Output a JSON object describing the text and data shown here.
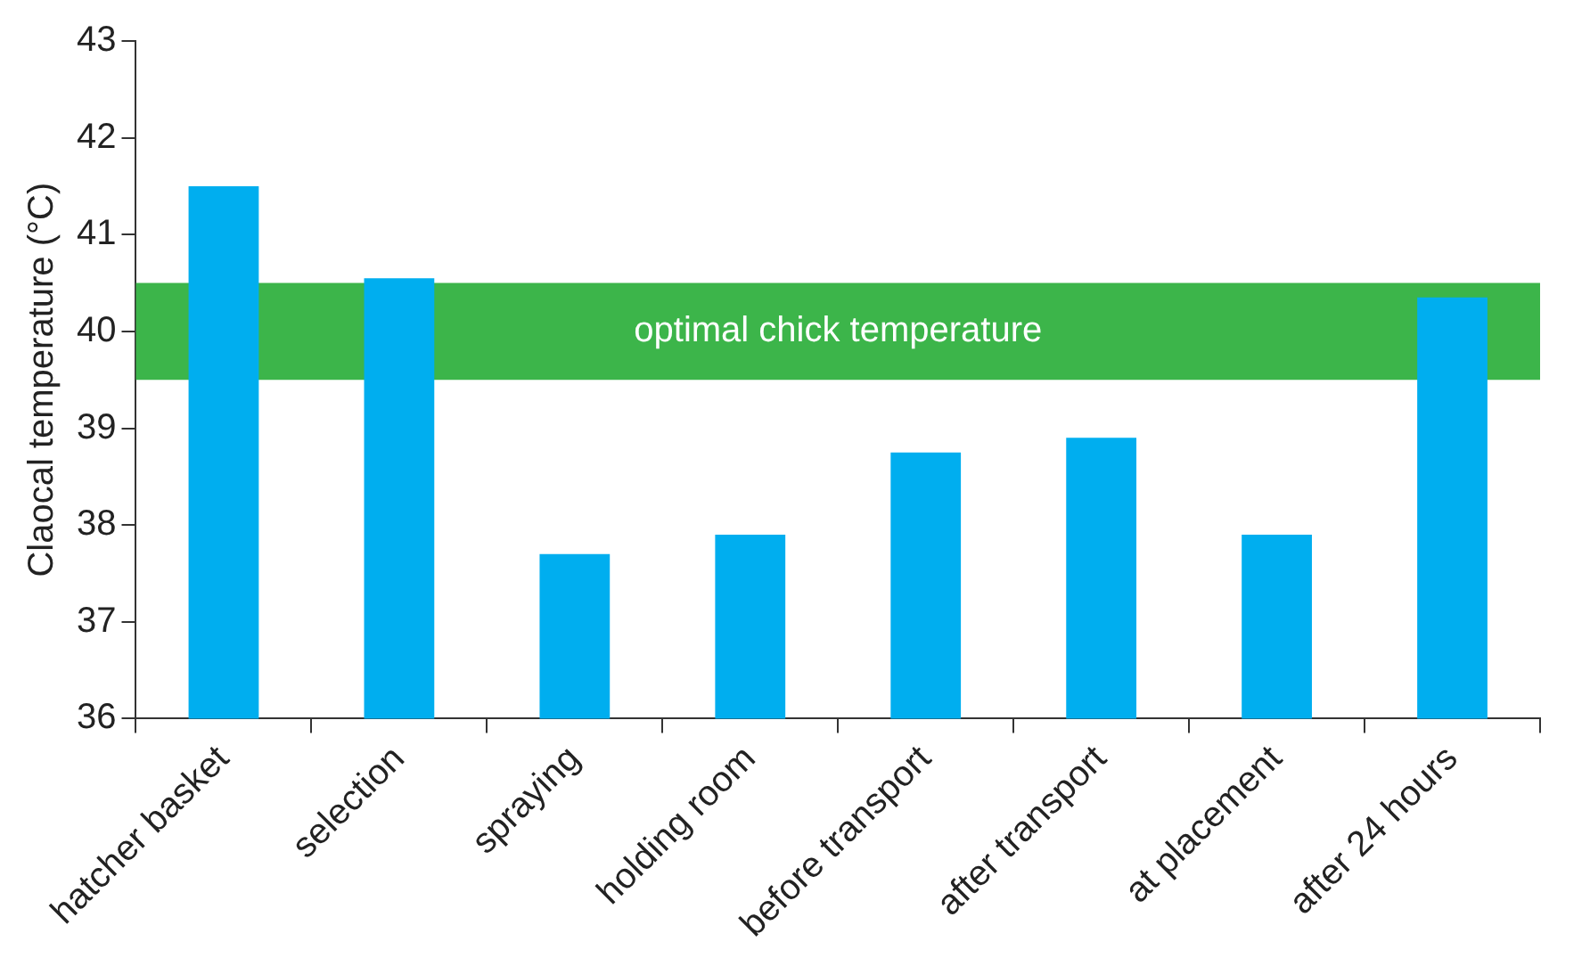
{
  "chart_data": {
    "type": "bar",
    "ylabel": "Claocal temperature (°C)",
    "categories": [
      "hatcher basket",
      "selection",
      "spraying",
      "holding room",
      "before transport",
      "after transport",
      "at placement",
      "after 24 hours"
    ],
    "values": [
      41.5,
      40.55,
      37.7,
      37.9,
      38.75,
      38.9,
      37.9,
      40.35
    ],
    "color": "#00aeef",
    "ylim": [
      36,
      43
    ],
    "yticks": [
      36,
      37,
      38,
      39,
      40,
      41,
      42,
      43
    ],
    "bands": [
      {
        "axis": "y",
        "from": 39.5,
        "to": 40.5,
        "label": "optimal chick temperature",
        "color": "#3cb54a"
      }
    ],
    "grid": false,
    "legend": false
  }
}
